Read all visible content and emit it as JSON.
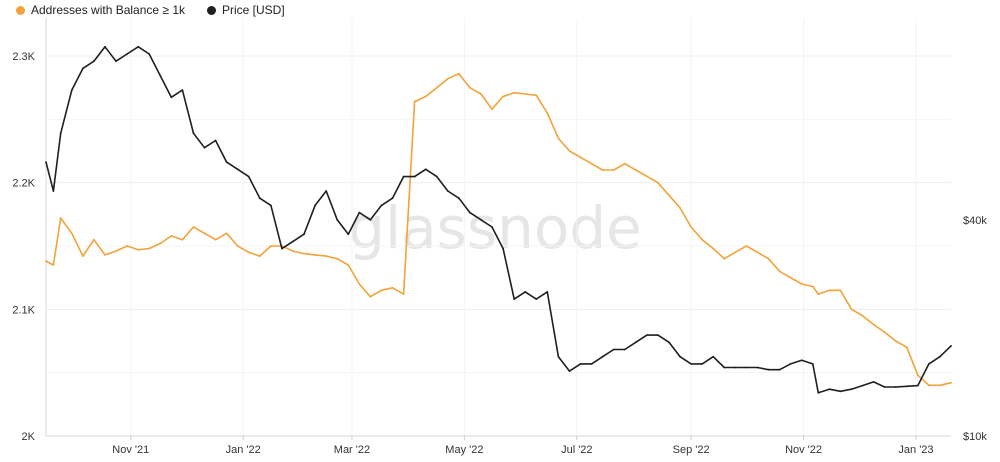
{
  "colors": {
    "addresses": "#F2A33A",
    "price": "#1f1f1f",
    "grid": "#eeeeee"
  },
  "watermark": "glassnode",
  "chart_data": {
    "type": "line",
    "legend_position": "top-left",
    "grid": true,
    "x_ticks": [
      "Nov '21",
      "Jan '22",
      "Mar '22",
      "May '22",
      "Jul '22",
      "Sep '22",
      "Nov '22",
      "Jan '23"
    ],
    "y_left_ticks": [
      "2K",
      "2.1K",
      "2.2K",
      "2.3K"
    ],
    "y_right_ticks": [
      "$10k",
      "$40k"
    ],
    "ylim_left": [
      2000,
      2330
    ],
    "ylim_right": [
      10000,
      68000
    ],
    "x": [
      "2021-09-16",
      "2021-09-20",
      "2021-09-24",
      "2021-09-30",
      "2021-10-06",
      "2021-10-12",
      "2021-10-18",
      "2021-10-24",
      "2021-10-30",
      "2021-11-05",
      "2021-11-11",
      "2021-11-17",
      "2021-11-23",
      "2021-11-29",
      "2021-12-05",
      "2021-12-11",
      "2021-12-17",
      "2021-12-23",
      "2021-12-29",
      "2022-01-04",
      "2022-01-10",
      "2022-01-16",
      "2022-01-22",
      "2022-01-28",
      "2022-02-03",
      "2022-02-09",
      "2022-02-15",
      "2022-02-21",
      "2022-02-27",
      "2022-03-05",
      "2022-03-11",
      "2022-03-17",
      "2022-03-23",
      "2022-03-29",
      "2022-04-04",
      "2022-04-10",
      "2022-04-16",
      "2022-04-22",
      "2022-04-28",
      "2022-05-04",
      "2022-05-10",
      "2022-05-16",
      "2022-05-22",
      "2022-05-28",
      "2022-06-03",
      "2022-06-09",
      "2022-06-15",
      "2022-06-21",
      "2022-06-27",
      "2022-07-03",
      "2022-07-09",
      "2022-07-15",
      "2022-07-21",
      "2022-07-27",
      "2022-08-02",
      "2022-08-08",
      "2022-08-14",
      "2022-08-20",
      "2022-08-26",
      "2022-09-01",
      "2022-09-07",
      "2022-09-13",
      "2022-09-19",
      "2022-09-25",
      "2022-10-01",
      "2022-10-07",
      "2022-10-13",
      "2022-10-19",
      "2022-10-25",
      "2022-10-31",
      "2022-11-06",
      "2022-11-09",
      "2022-11-15",
      "2022-11-21",
      "2022-11-27",
      "2022-12-03",
      "2022-12-09",
      "2022-12-15",
      "2022-12-21",
      "2022-12-27",
      "2023-01-02",
      "2023-01-08",
      "2023-01-14",
      "2023-01-20"
    ],
    "series": [
      {
        "name": "Addresses with Balance ≥ 1k",
        "axis": "left",
        "values": [
          2138,
          2135,
          2172,
          2160,
          2142,
          2155,
          2143,
          2146,
          2150,
          2147,
          2148,
          2152,
          2158,
          2155,
          2165,
          2160,
          2155,
          2160,
          2150,
          2145,
          2142,
          2150,
          2150,
          2146,
          2144,
          2143,
          2142,
          2140,
          2135,
          2120,
          2110,
          2115,
          2117,
          2112,
          2264,
          2268,
          2275,
          2282,
          2286,
          2275,
          2270,
          2258,
          2268,
          2271,
          2270,
          2269,
          2255,
          2235,
          2225,
          2220,
          2215,
          2210,
          2210,
          2215,
          2210,
          2205,
          2200,
          2190,
          2180,
          2165,
          2155,
          2148,
          2140,
          2145,
          2150,
          2145,
          2140,
          2130,
          2125,
          2120,
          2118,
          2112,
          2115,
          2115,
          2100,
          2095,
          2088,
          2082,
          2075,
          2070,
          2048,
          2040,
          2040,
          2042
        ]
      },
      {
        "name": "Price [USD]",
        "axis": "right",
        "values": [
          48000,
          44000,
          52000,
          58000,
          61000,
          62000,
          64000,
          62000,
          63000,
          64000,
          63000,
          60000,
          57000,
          58000,
          52000,
          50000,
          51000,
          48000,
          47000,
          46000,
          43000,
          42000,
          36000,
          37000,
          38000,
          42000,
          44000,
          40000,
          38000,
          41000,
          40000,
          42000,
          43000,
          46000,
          46000,
          47000,
          46000,
          44000,
          43000,
          41000,
          40000,
          39000,
          36000,
          29000,
          30000,
          29000,
          30000,
          21000,
          19000,
          20000,
          20000,
          21000,
          22000,
          22000,
          23000,
          24000,
          24000,
          23000,
          21000,
          20000,
          20000,
          21000,
          19500,
          19500,
          19500,
          19500,
          19200,
          19200,
          20000,
          20500,
          20000,
          16000,
          16500,
          16200,
          16500,
          17000,
          17500,
          16800,
          16800,
          16900,
          17000,
          20000,
          21000,
          22500
        ]
      }
    ]
  }
}
